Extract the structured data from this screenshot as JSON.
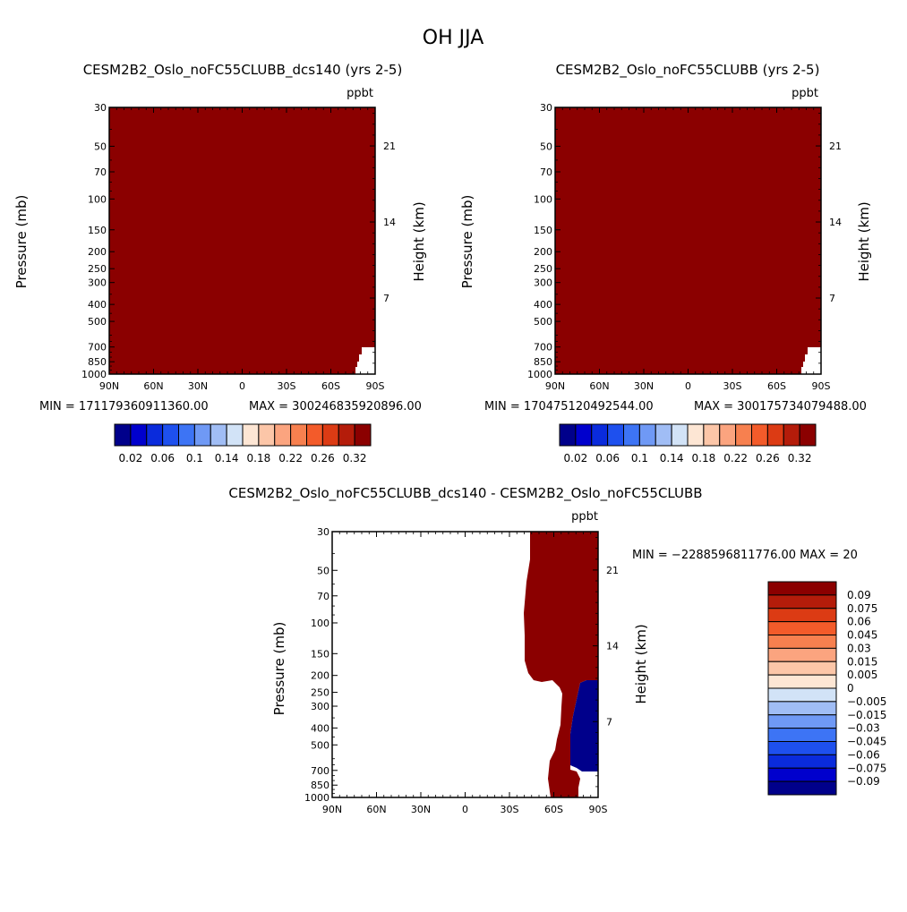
{
  "page_title": "OH JJA",
  "colors": {
    "palette": [
      "#00008b",
      "#0000cd",
      "#0a2bdc",
      "#1e50ee",
      "#3d74f5",
      "#6f99f5",
      "#a0bdf5",
      "#d2e3f7",
      "#fde6d4",
      "#fcc6a8",
      "#fba47f",
      "#f7804f",
      "#f35b2a",
      "#dc3b14",
      "#b41c0a",
      "#8b0000"
    ],
    "field_fill": "#8b0000",
    "diff_positive": "#8b0000",
    "diff_negative": "#00008b"
  },
  "chart_data": [
    {
      "type": "heatmap",
      "title": "CESM2B2_Oslo_noFC55CLUBB_dcs140 (yrs 2-5)",
      "units": "ppbt",
      "xlabel": "",
      "ylabel": "Pressure (mb)",
      "ylabel_right": "Height (km)",
      "x_ticks": [
        "90N",
        "60N",
        "30N",
        "0",
        "30S",
        "60S",
        "90S"
      ],
      "y_ticks": [
        "30",
        "50",
        "70",
        "100",
        "150",
        "200",
        "250",
        "300",
        "400",
        "500",
        "700",
        "850",
        "1000"
      ],
      "y_right_ticks": [
        "21",
        "14",
        "7"
      ],
      "min_label": "MIN = 171179360911360.00",
      "max_label": "MAX = 300246835920896.00",
      "colorbar_labels": [
        "0.02",
        "0.06",
        "0.1",
        "0.14",
        "0.18",
        "0.22",
        "0.26",
        "0.32"
      ]
    },
    {
      "type": "heatmap",
      "title": "CESM2B2_Oslo_noFC55CLUBB (yrs 2-5)",
      "units": "ppbt",
      "xlabel": "",
      "ylabel": "Pressure (mb)",
      "ylabel_right": "Height (km)",
      "x_ticks": [
        "90N",
        "60N",
        "30N",
        "0",
        "30S",
        "60S",
        "90S"
      ],
      "y_ticks": [
        "30",
        "50",
        "70",
        "100",
        "150",
        "200",
        "250",
        "300",
        "400",
        "500",
        "700",
        "850",
        "1000"
      ],
      "y_right_ticks": [
        "21",
        "14",
        "7"
      ],
      "min_label": "MIN = 170475120492544.00",
      "max_label": "MAX = 300175734079488.00",
      "colorbar_labels": [
        "0.02",
        "0.06",
        "0.1",
        "0.14",
        "0.18",
        "0.22",
        "0.26",
        "0.32"
      ]
    },
    {
      "type": "heatmap",
      "title": "CESM2B2_Oslo_noFC55CLUBB_dcs140 - CESM2B2_Oslo_noFC55CLUBB",
      "units": "ppbt",
      "xlabel": "",
      "ylabel": "Pressure (mb)",
      "ylabel_right": "Height (km)",
      "x_ticks": [
        "90N",
        "60N",
        "30N",
        "0",
        "30S",
        "60S",
        "90S"
      ],
      "y_ticks": [
        "30",
        "50",
        "70",
        "100",
        "150",
        "200",
        "250",
        "300",
        "400",
        "500",
        "700",
        "850",
        "1000"
      ],
      "y_right_ticks": [
        "21",
        "14",
        "7"
      ],
      "minmax_label": "MIN = −2288596811776.00   MAX = 20",
      "colorbar_labels": [
        "0.09",
        "0.075",
        "0.06",
        "0.045",
        "0.03",
        "0.015",
        "0.005",
        "0",
        "−0.005",
        "−0.015",
        "−0.03",
        "−0.045",
        "−0.06",
        "−0.075",
        "−0.09"
      ]
    }
  ]
}
